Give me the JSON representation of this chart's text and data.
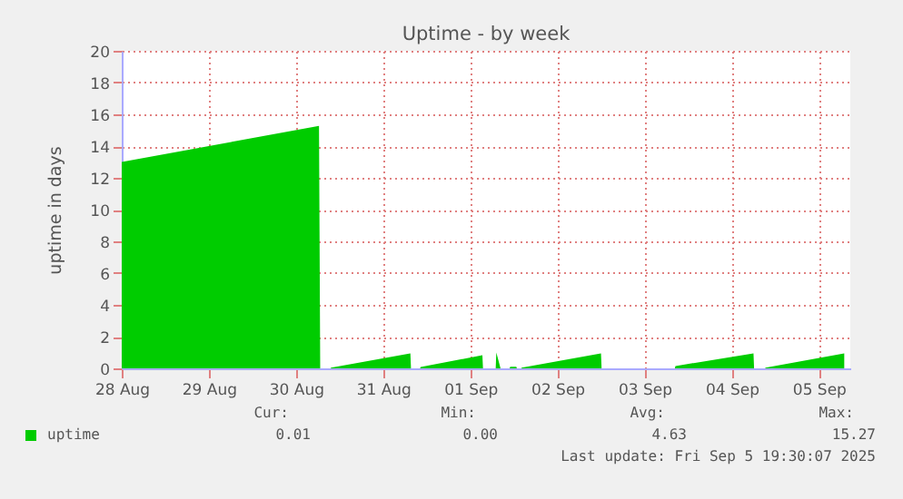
{
  "chart_data": {
    "type": "area",
    "title": "Uptime - by week",
    "ylabel": "uptime in days",
    "x": [
      "2025-08-28T00:00",
      "2025-08-30T06:20",
      "2025-08-30T06:40",
      "2025-08-30T09:30",
      "2025-08-30T09:40",
      "2025-08-31T07:30",
      "2025-08-31T07:40",
      "2025-08-31T10:10",
      "2025-08-31T10:20",
      "2025-09-01T03:20",
      "2025-09-01T03:30",
      "2025-09-01T07:00",
      "2025-09-01T07:10",
      "2025-09-01T08:20",
      "2025-09-01T10:50",
      "2025-09-01T11:00",
      "2025-09-01T12:40",
      "2025-09-01T12:50",
      "2025-09-01T14:00",
      "2025-09-01T14:10",
      "2025-09-02T12:00",
      "2025-09-02T12:10",
      "2025-09-03T08:20",
      "2025-09-03T08:30",
      "2025-09-04T06:00",
      "2025-09-04T06:10",
      "2025-09-04T09:10",
      "2025-09-04T09:20",
      "2025-09-05T07:00"
    ],
    "series": [
      {
        "name": "uptime",
        "color": "#00cc00",
        "values": [
          13.0,
          15.27,
          0,
          0,
          0.05,
          0.94,
          0,
          0,
          0.08,
          0.83,
          0,
          0,
          1.0,
          0,
          0,
          0.1,
          0.1,
          0,
          0,
          0.05,
          0.94,
          0,
          0,
          0.15,
          0.94,
          0,
          0,
          0.05,
          0.94
        ]
      }
    ],
    "xlim": [
      "2025-08-28T00:00",
      "2025-09-05T08:40"
    ],
    "xticks": [
      {
        "value": "2025-08-28",
        "label": "28 Aug"
      },
      {
        "value": "2025-08-29",
        "label": "29 Aug"
      },
      {
        "value": "2025-08-30",
        "label": "30 Aug"
      },
      {
        "value": "2025-08-31",
        "label": "31 Aug"
      },
      {
        "value": "2025-09-01",
        "label": "01 Sep"
      },
      {
        "value": "2025-09-02",
        "label": "02 Sep"
      },
      {
        "value": "2025-09-03",
        "label": "03 Sep"
      },
      {
        "value": "2025-09-04",
        "label": "04 Sep"
      },
      {
        "value": "2025-09-05",
        "label": "05 Sep"
      }
    ],
    "ylim": [
      0,
      20
    ],
    "yticks": [
      0,
      2,
      4,
      6,
      8,
      10,
      12,
      14,
      16,
      18,
      20
    ],
    "grid": true,
    "legend": "bottom",
    "annotations": [
      "Cur:",
      "0.01",
      "Min:",
      "0.00",
      "Avg:",
      "4.63",
      "Max:",
      "15.27",
      "Last update: Fri Sep  5 19:30:07 2025"
    ]
  }
}
